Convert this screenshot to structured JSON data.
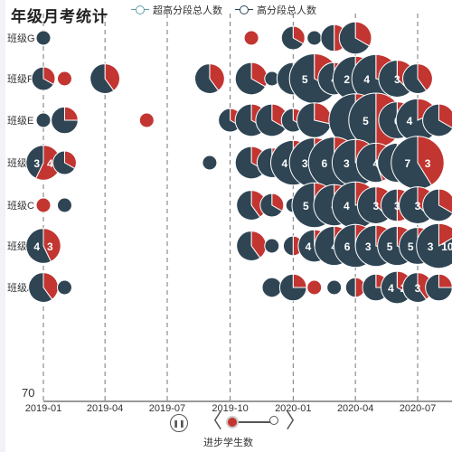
{
  "header": {
    "title": "年级月考统计",
    "legend": [
      {
        "label": "超高分段总人数",
        "color": "#61a0a8"
      },
      {
        "label": "高分段总人数",
        "color": "#2f4554"
      }
    ]
  },
  "timeline": {
    "label": "进步学生数",
    "play_icon": "pause-icon",
    "prev_icon": "chevron-left-icon",
    "next_icon": "chevron-right-icon"
  },
  "chart_data": {
    "type": "scatter",
    "chart_kind": "bubble-pie",
    "y_categories": [
      "班级G",
      "班级F",
      "班级E",
      "班级D",
      "班级C",
      "班级B",
      "班级A"
    ],
    "y_category_labels": [
      "班级G",
      "班级F",
      "班级E",
      "班级",
      "班级C",
      "班级",
      "班级A"
    ],
    "x_axis": {
      "type": "time",
      "ticks": [
        "2019-01",
        "2019-04",
        "2019-07",
        "2019-10",
        "2020-01",
        "2020-04",
        "2020-07"
      ],
      "xlim": [
        "2018-12-20",
        "2020-09-15"
      ]
    },
    "y_axis_visible_value": "70",
    "grid": "vertical dashed",
    "colors": {
      "super_high": "#c23531",
      "high": "#2f4554"
    },
    "points": [
      {
        "row": "班级G",
        "date": "2019-01-01",
        "super_high": 0,
        "high": 1
      },
      {
        "row": "班级G",
        "date": "2019-11-01",
        "super_high": 1,
        "high": 0
      },
      {
        "row": "班级G",
        "date": "2020-01-01",
        "super_high": 1,
        "high": 2
      },
      {
        "row": "班级G",
        "date": "2020-02-01",
        "super_high": 0,
        "high": 1
      },
      {
        "row": "班级G",
        "date": "2020-03-01",
        "super_high": 2,
        "high": 2
      },
      {
        "row": "班级G",
        "date": "2020-04-01",
        "super_high": 2,
        "high": 4
      },
      {
        "row": "班级F",
        "date": "2019-01-01",
        "super_high": 1,
        "high": 2
      },
      {
        "row": "班级F",
        "date": "2019-02-01",
        "super_high": 1,
        "high": 0
      },
      {
        "row": "班级F",
        "date": "2019-04-01",
        "super_high": 2,
        "high": 3
      },
      {
        "row": "班级F",
        "date": "2019-09-01",
        "super_high": 2,
        "high": 3
      },
      {
        "row": "班级F",
        "date": "2019-11-01",
        "super_high": 2,
        "high": 4
      },
      {
        "row": "班级F",
        "date": "2019-12-01",
        "super_high": 0,
        "high": 1
      },
      {
        "row": "班级F",
        "date": "2020-01-01",
        "super_high": 1,
        "high": 5,
        "label_left": "5"
      },
      {
        "row": "班级F",
        "date": "2020-02-01",
        "super_high": 5,
        "high": 10,
        "label_left": "5",
        "label_right": "5"
      },
      {
        "row": "班级F",
        "date": "2020-03-01",
        "super_high": 1,
        "high": 5,
        "label_left": "4"
      },
      {
        "row": "班级F",
        "date": "2020-04-01",
        "super_high": 2,
        "high": 10,
        "label_left": "2",
        "label_right": "7"
      },
      {
        "row": "班级F",
        "date": "2020-05-01",
        "super_high": 4,
        "high": 10,
        "label_left": "4",
        "label_right": "3"
      },
      {
        "row": "班级F",
        "date": "2020-06-01",
        "super_high": 3,
        "high": 5,
        "label_left": "3"
      },
      {
        "row": "班级F",
        "date": "2020-07-01",
        "super_high": 2,
        "high": 3
      },
      {
        "row": "班级E",
        "date": "2019-01-01",
        "super_high": 0,
        "high": 1
      },
      {
        "row": "班级E",
        "date": "2019-02-01",
        "super_high": 1,
        "high": 3
      },
      {
        "row": "班级E",
        "date": "2019-06-01",
        "super_high": 1,
        "high": 0
      },
      {
        "row": "班级E",
        "date": "2019-10-01",
        "super_high": 1,
        "high": 2
      },
      {
        "row": "班级E",
        "date": "2019-11-01",
        "super_high": 2,
        "high": 4
      },
      {
        "row": "班级E",
        "date": "2019-12-01",
        "super_high": 2,
        "high": 4
      },
      {
        "row": "班级E",
        "date": "2020-01-01",
        "super_high": 1,
        "high": 2
      },
      {
        "row": "班级E",
        "date": "2020-02-01",
        "super_high": 2,
        "high": 5
      },
      {
        "row": "班级E",
        "date": "2020-04-01",
        "super_high": 5,
        "high": 12,
        "label_left": "5"
      },
      {
        "row": "班级E",
        "date": "2020-05-01",
        "super_high": 9,
        "high": 9,
        "label_left": "5",
        "label_right": "9"
      },
      {
        "row": "班级E",
        "date": "2020-06-01",
        "super_high": 2,
        "high": 6,
        "label_left": "6"
      },
      {
        "row": "班级E",
        "date": "2020-07-01",
        "super_high": 2,
        "high": 9,
        "label_left": "4",
        "label_right": "5"
      },
      {
        "row": "班级E",
        "date": "2020-08-01",
        "super_high": 2,
        "high": 4
      },
      {
        "row": "班级D",
        "date": "2019-01-01",
        "super_high": 4,
        "high": 3,
        "label_left": "3",
        "label_right": "4"
      },
      {
        "row": "班级D",
        "date": "2019-02-01",
        "super_high": 1,
        "high": 2
      },
      {
        "row": "班级D",
        "date": "2019-09-01",
        "super_high": 0,
        "high": 1
      },
      {
        "row": "班级D",
        "date": "2019-11-01",
        "super_high": 2,
        "high": 4
      },
      {
        "row": "班级D",
        "date": "2019-12-01",
        "super_high": 2,
        "high": 3
      },
      {
        "row": "班级D",
        "date": "2020-01-01",
        "super_high": 4,
        "high": 8,
        "label_left": "4",
        "label_right": "8"
      },
      {
        "row": "班级D",
        "date": "2020-02-01",
        "super_high": 3,
        "high": 12,
        "label_left": "3",
        "label_right": "7"
      },
      {
        "row": "班级D",
        "date": "2020-03-01",
        "super_high": 6,
        "high": 10,
        "label_left": "6",
        "label_right": "9"
      },
      {
        "row": "班级D",
        "date": "2020-04-01",
        "super_high": 3,
        "high": 10,
        "label_left": "3",
        "label_right": "5"
      },
      {
        "row": "班级D",
        "date": "2020-05-01",
        "super_high": 4,
        "high": 5,
        "label_left": "4"
      },
      {
        "row": "班级D",
        "date": "2020-06-01",
        "super_high": 3,
        "high": 6,
        "label_left": "3"
      },
      {
        "row": "班级D",
        "date": "2020-07-01",
        "super_high": 7,
        "high": 10,
        "label_left": "7",
        "label_right": "3"
      },
      {
        "row": "班级C",
        "date": "2019-01-01",
        "super_high": 1,
        "high": 0
      },
      {
        "row": "班级C",
        "date": "2019-02-01",
        "super_high": 0,
        "high": 1
      },
      {
        "row": "班级C",
        "date": "2019-11-01",
        "super_high": 2,
        "high": 3
      },
      {
        "row": "班级C",
        "date": "2019-12-01",
        "super_high": 1,
        "high": 2
      },
      {
        "row": "班级C",
        "date": "2020-01-01",
        "super_high": 0,
        "high": 1
      },
      {
        "row": "班级C",
        "date": "2020-02-01",
        "super_high": 4,
        "high": 8,
        "label_left": "5",
        "label_right": "3"
      },
      {
        "row": "班级C",
        "date": "2020-03-01",
        "super_high": 4,
        "high": 6,
        "label_left": "4"
      },
      {
        "row": "班级C",
        "date": "2020-04-01",
        "super_high": 3,
        "high": 10,
        "label_left": "4",
        "label_right": "7"
      },
      {
        "row": "班级C",
        "date": "2020-05-01",
        "super_high": 3,
        "high": 5,
        "label_left": "3"
      },
      {
        "row": "班级C",
        "date": "2020-06-01",
        "super_high": 3,
        "high": 3,
        "label_left": "3"
      },
      {
        "row": "班级C",
        "date": "2020-07-01",
        "super_high": 3,
        "high": 5,
        "label_left": "3"
      },
      {
        "row": "班级C",
        "date": "2020-08-01",
        "super_high": 2,
        "high": 4
      },
      {
        "row": "班级B",
        "date": "2019-01-01",
        "super_high": 3,
        "high": 4,
        "label_left": "4",
        "label_right": "3"
      },
      {
        "row": "班级B",
        "date": "2019-11-01",
        "super_high": 2,
        "high": 3
      },
      {
        "row": "班级B",
        "date": "2019-12-01",
        "super_high": 0,
        "high": 1
      },
      {
        "row": "班级B",
        "date": "2020-01-01",
        "super_high": 1,
        "high": 1
      },
      {
        "row": "班级B",
        "date": "2020-02-01",
        "super_high": 2,
        "high": 4,
        "label_left": "4",
        "label_right": "2"
      },
      {
        "row": "班级B",
        "date": "2020-03-01",
        "super_high": 3,
        "high": 6,
        "label_left": "4"
      },
      {
        "row": "班级B",
        "date": "2020-04-01",
        "super_high": 1,
        "high": 10,
        "label_left": "6",
        "label_right": "1"
      },
      {
        "row": "班级B",
        "date": "2020-05-01",
        "super_high": 3,
        "high": 7,
        "label_left": "3",
        "label_right": "3"
      },
      {
        "row": "班级B",
        "date": "2020-06-01",
        "super_high": 3,
        "high": 6,
        "label_left": "5",
        "label_right": "3"
      },
      {
        "row": "班级B",
        "date": "2020-07-01",
        "super_high": 2,
        "high": 6,
        "label_left": "5",
        "label_right": "2"
      },
      {
        "row": "班级B",
        "date": "2020-08-01",
        "super_high": 2,
        "high": 10,
        "label_left": "3",
        "label_right": "10"
      },
      {
        "row": "班级A",
        "date": "2019-01-01",
        "super_high": 2,
        "high": 3
      },
      {
        "row": "班级A",
        "date": "2019-02-01",
        "super_high": 0,
        "high": 1
      },
      {
        "row": "班级A",
        "date": "2019-12-01",
        "super_high": 0,
        "high": 2
      },
      {
        "row": "班级A",
        "date": "2020-01-01",
        "super_high": 1,
        "high": 3
      },
      {
        "row": "班级A",
        "date": "2020-02-01",
        "super_high": 1,
        "high": 0
      },
      {
        "row": "班级A",
        "date": "2020-03-01",
        "super_high": 0,
        "high": 1
      },
      {
        "row": "班级A",
        "date": "2020-04-01",
        "super_high": 1,
        "high": 1
      },
      {
        "row": "班级A",
        "date": "2020-05-01",
        "super_high": 1,
        "high": 3
      },
      {
        "row": "班级A",
        "date": "2020-06-01",
        "super_high": 2,
        "high": 4,
        "label_left": "4",
        "label_right": "2"
      },
      {
        "row": "班级A",
        "date": "2020-07-01",
        "super_high": 2,
        "high": 3,
        "label_left": "3"
      },
      {
        "row": "班级A",
        "date": "2020-08-01",
        "super_high": 1,
        "high": 3
      }
    ]
  }
}
